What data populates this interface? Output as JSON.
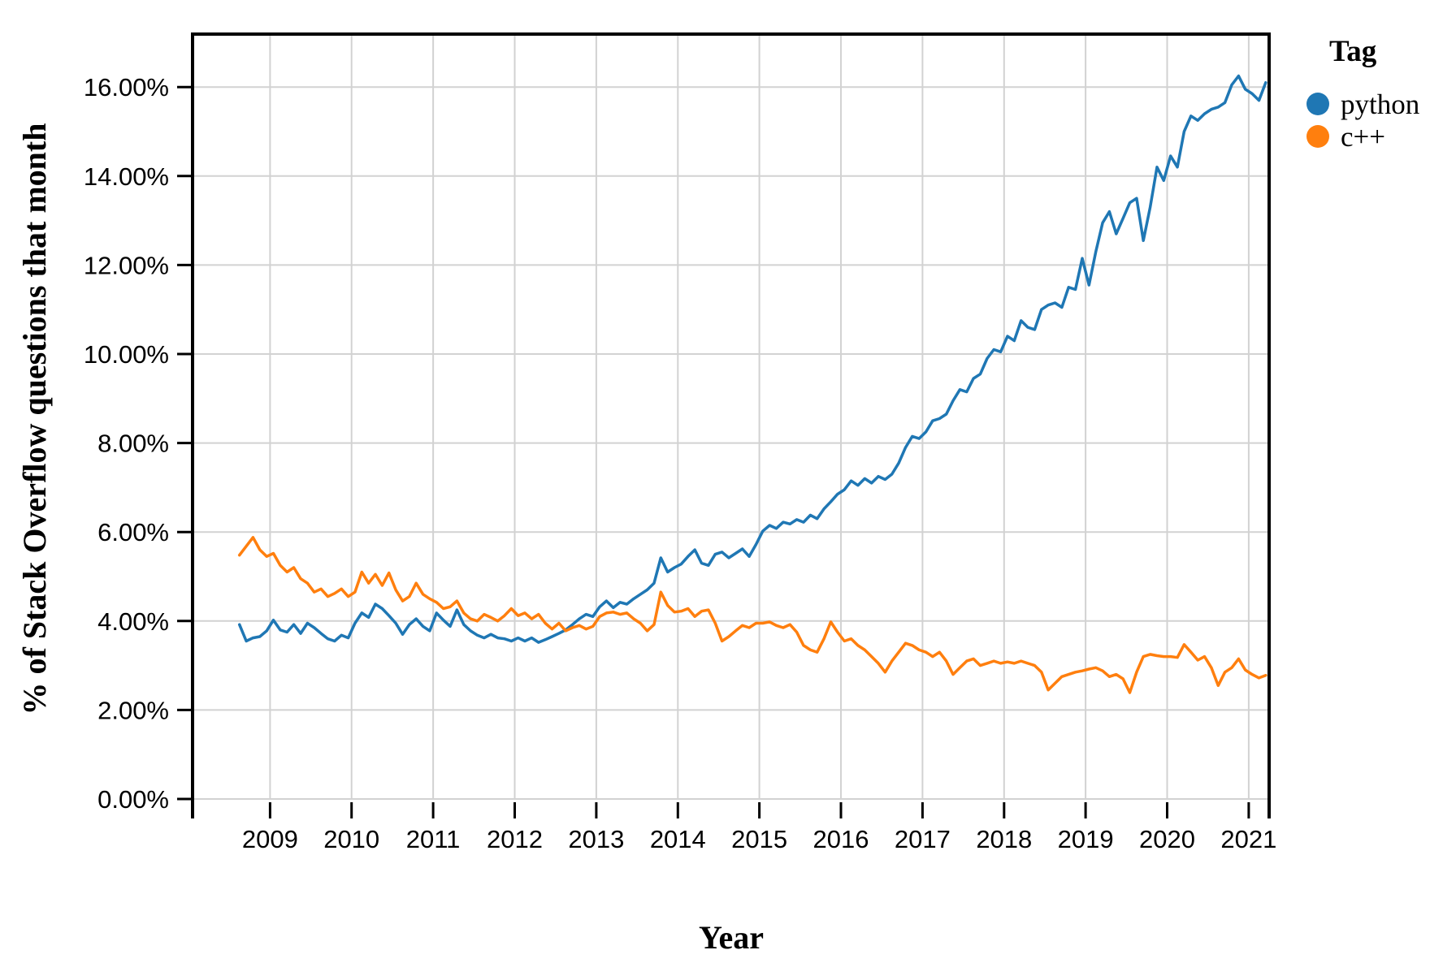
{
  "chart_data": {
    "type": "line",
    "title": "",
    "xlabel": "Year",
    "ylabel": "% of Stack Overflow questions that month",
    "legend_title": "Tag",
    "legend_position": "right-top-outside",
    "grid": true,
    "x_unit": "month",
    "x_start": {
      "year": 2008,
      "month": 8
    },
    "x_end": {
      "year": 2021,
      "month": 3
    },
    "xlim": [
      2008.05,
      2021.25
    ],
    "ylim": [
      0,
      17.2
    ],
    "x_ticks": [
      2009,
      2010,
      2011,
      2012,
      2013,
      2014,
      2015,
      2016,
      2017,
      2018,
      2019,
      2020,
      2021
    ],
    "y_ticks": [
      0,
      2,
      4,
      6,
      8,
      10,
      12,
      14,
      16
    ],
    "y_tick_labels": [
      "0.00%",
      "2.00%",
      "4.00%",
      "6.00%",
      "8.00%",
      "10.00%",
      "12.00%",
      "14.00%",
      "16.00%"
    ],
    "series": [
      {
        "name": "python",
        "color": "#1f77b4",
        "values": [
          3.92,
          3.55,
          3.62,
          3.65,
          3.78,
          4.02,
          3.8,
          3.75,
          3.92,
          3.72,
          3.95,
          3.85,
          3.72,
          3.6,
          3.55,
          3.68,
          3.62,
          3.95,
          4.18,
          4.08,
          4.38,
          4.28,
          4.12,
          3.95,
          3.7,
          3.92,
          4.05,
          3.88,
          3.78,
          4.18,
          4.02,
          3.88,
          4.25,
          3.92,
          3.78,
          3.68,
          3.62,
          3.7,
          3.62,
          3.6,
          3.55,
          3.62,
          3.55,
          3.62,
          3.52,
          3.58,
          3.65,
          3.72,
          3.8,
          3.92,
          4.05,
          4.15,
          4.1,
          4.32,
          4.45,
          4.3,
          4.42,
          4.38,
          4.5,
          4.6,
          4.7,
          4.85,
          5.42,
          5.1,
          5.2,
          5.28,
          5.45,
          5.6,
          5.3,
          5.25,
          5.5,
          5.55,
          5.42,
          5.52,
          5.62,
          5.45,
          5.72,
          6.02,
          6.15,
          6.08,
          6.22,
          6.18,
          6.28,
          6.22,
          6.38,
          6.3,
          6.52,
          6.68,
          6.85,
          6.95,
          7.15,
          7.05,
          7.2,
          7.1,
          7.25,
          7.18,
          7.3,
          7.55,
          7.9,
          8.15,
          8.1,
          8.25,
          8.5,
          8.55,
          8.65,
          8.95,
          9.2,
          9.15,
          9.45,
          9.55,
          9.9,
          10.1,
          10.05,
          10.4,
          10.3,
          10.75,
          10.6,
          10.55,
          11.0,
          11.1,
          11.15,
          11.05,
          11.5,
          11.45,
          12.15,
          11.55,
          12.3,
          12.95,
          13.2,
          12.7,
          13.05,
          13.4,
          13.5,
          12.55,
          13.3,
          14.2,
          13.9,
          14.45,
          14.2,
          15.0,
          15.35,
          15.25,
          15.4,
          15.5,
          15.55,
          15.65,
          16.05,
          16.25,
          15.95,
          15.85,
          15.7,
          16.1
        ]
      },
      {
        "name": "c++",
        "color": "#ff7f0e",
        "values": [
          5.48,
          5.68,
          5.88,
          5.6,
          5.45,
          5.52,
          5.25,
          5.1,
          5.2,
          4.95,
          4.85,
          4.65,
          4.72,
          4.55,
          4.62,
          4.72,
          4.55,
          4.65,
          5.1,
          4.85,
          5.05,
          4.8,
          5.08,
          4.7,
          4.45,
          4.55,
          4.85,
          4.6,
          4.5,
          4.42,
          4.28,
          4.32,
          4.45,
          4.18,
          4.05,
          4.0,
          4.15,
          4.08,
          4.0,
          4.12,
          4.28,
          4.12,
          4.18,
          4.05,
          4.15,
          3.95,
          3.82,
          3.95,
          3.78,
          3.85,
          3.9,
          3.82,
          3.88,
          4.1,
          4.18,
          4.2,
          4.15,
          4.18,
          4.05,
          3.95,
          3.78,
          3.92,
          4.65,
          4.35,
          4.2,
          4.22,
          4.28,
          4.1,
          4.22,
          4.25,
          3.95,
          3.55,
          3.65,
          3.78,
          3.9,
          3.85,
          3.95,
          3.95,
          3.98,
          3.9,
          3.85,
          3.92,
          3.75,
          3.45,
          3.35,
          3.3,
          3.6,
          3.98,
          3.75,
          3.55,
          3.6,
          3.45,
          3.35,
          3.2,
          3.05,
          2.85,
          3.1,
          3.3,
          3.5,
          3.45,
          3.35,
          3.3,
          3.2,
          3.3,
          3.1,
          2.8,
          2.95,
          3.1,
          3.15,
          3.0,
          3.05,
          3.1,
          3.05,
          3.08,
          3.05,
          3.1,
          3.05,
          3.0,
          2.85,
          2.45,
          2.6,
          2.75,
          2.8,
          2.85,
          2.88,
          2.92,
          2.95,
          2.88,
          2.75,
          2.8,
          2.7,
          2.39,
          2.85,
          3.2,
          3.25,
          3.22,
          3.2,
          3.2,
          3.18,
          3.47,
          3.3,
          3.12,
          3.2,
          2.95,
          2.55,
          2.85,
          2.95,
          3.15,
          2.9,
          2.8,
          2.72,
          2.78
        ]
      }
    ],
    "style": {
      "gridline_color": "#d2d2d2",
      "spine_color": "#000000",
      "background": "#ffffff",
      "line_width": 3.5
    }
  }
}
